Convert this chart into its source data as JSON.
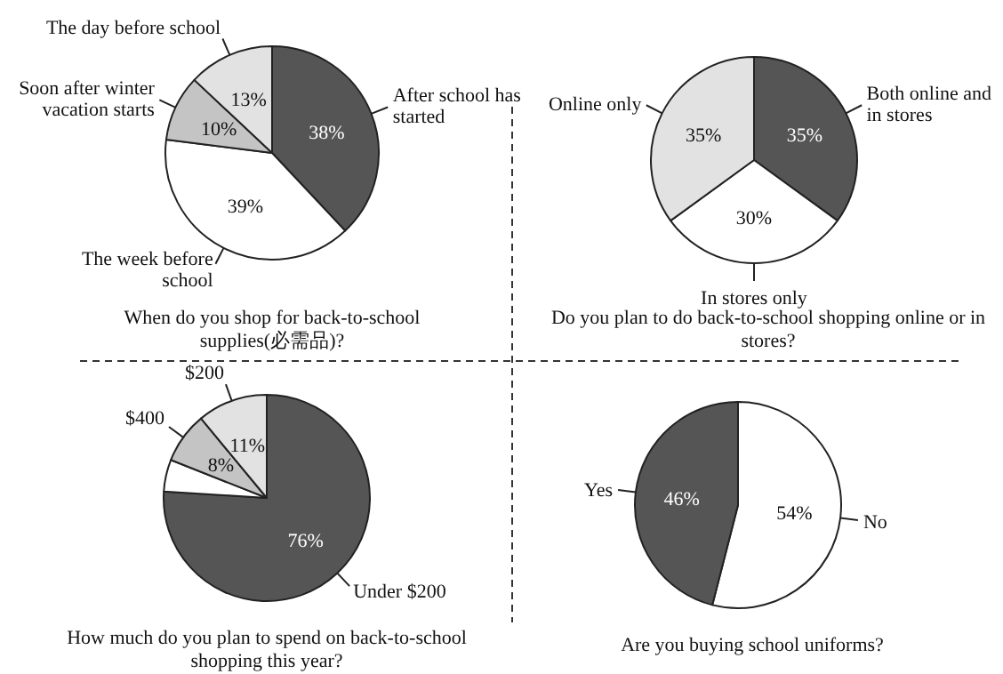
{
  "chart_data": [
    {
      "type": "pie",
      "title": "When do you shop for back-to-school supplies(必需品)?",
      "categories": [
        "After school has started",
        "The week before school",
        "Soon after winter vacation starts",
        "The day before school"
      ],
      "values": [
        38,
        39,
        10,
        13
      ],
      "value_labels": [
        "38%",
        "39%",
        "10%",
        "13%"
      ],
      "colors": [
        "#555555",
        "#ffffff",
        "#c4c4c4",
        "#e2e2e2"
      ]
    },
    {
      "type": "pie",
      "title": "Do you plan to do back-to-school shopping online or in stores?",
      "categories": [
        "Both online and in stores",
        "In stores only",
        "Online only"
      ],
      "values": [
        35,
        30,
        35
      ],
      "value_labels": [
        "35%",
        "30%",
        "35%"
      ],
      "colors": [
        "#555555",
        "#ffffff",
        "#e2e2e2"
      ]
    },
    {
      "type": "pie",
      "title": "How much do you plan to spend on back-to-school shopping this year?",
      "categories": [
        "Under $200",
        null,
        "$400",
        "$200"
      ],
      "values": [
        76,
        5,
        8,
        11
      ],
      "value_labels": [
        "76%",
        null,
        "8%",
        "11%"
      ],
      "colors": [
        "#555555",
        "#ffffff",
        "#c4c4c4",
        "#e2e2e2"
      ]
    },
    {
      "type": "pie",
      "title": "Are you buying school uniforms?",
      "categories": [
        "No",
        "Yes"
      ],
      "values": [
        54,
        46
      ],
      "value_labels": [
        "54%",
        "46%"
      ],
      "colors": [
        "#ffffff",
        "#555555"
      ]
    }
  ]
}
